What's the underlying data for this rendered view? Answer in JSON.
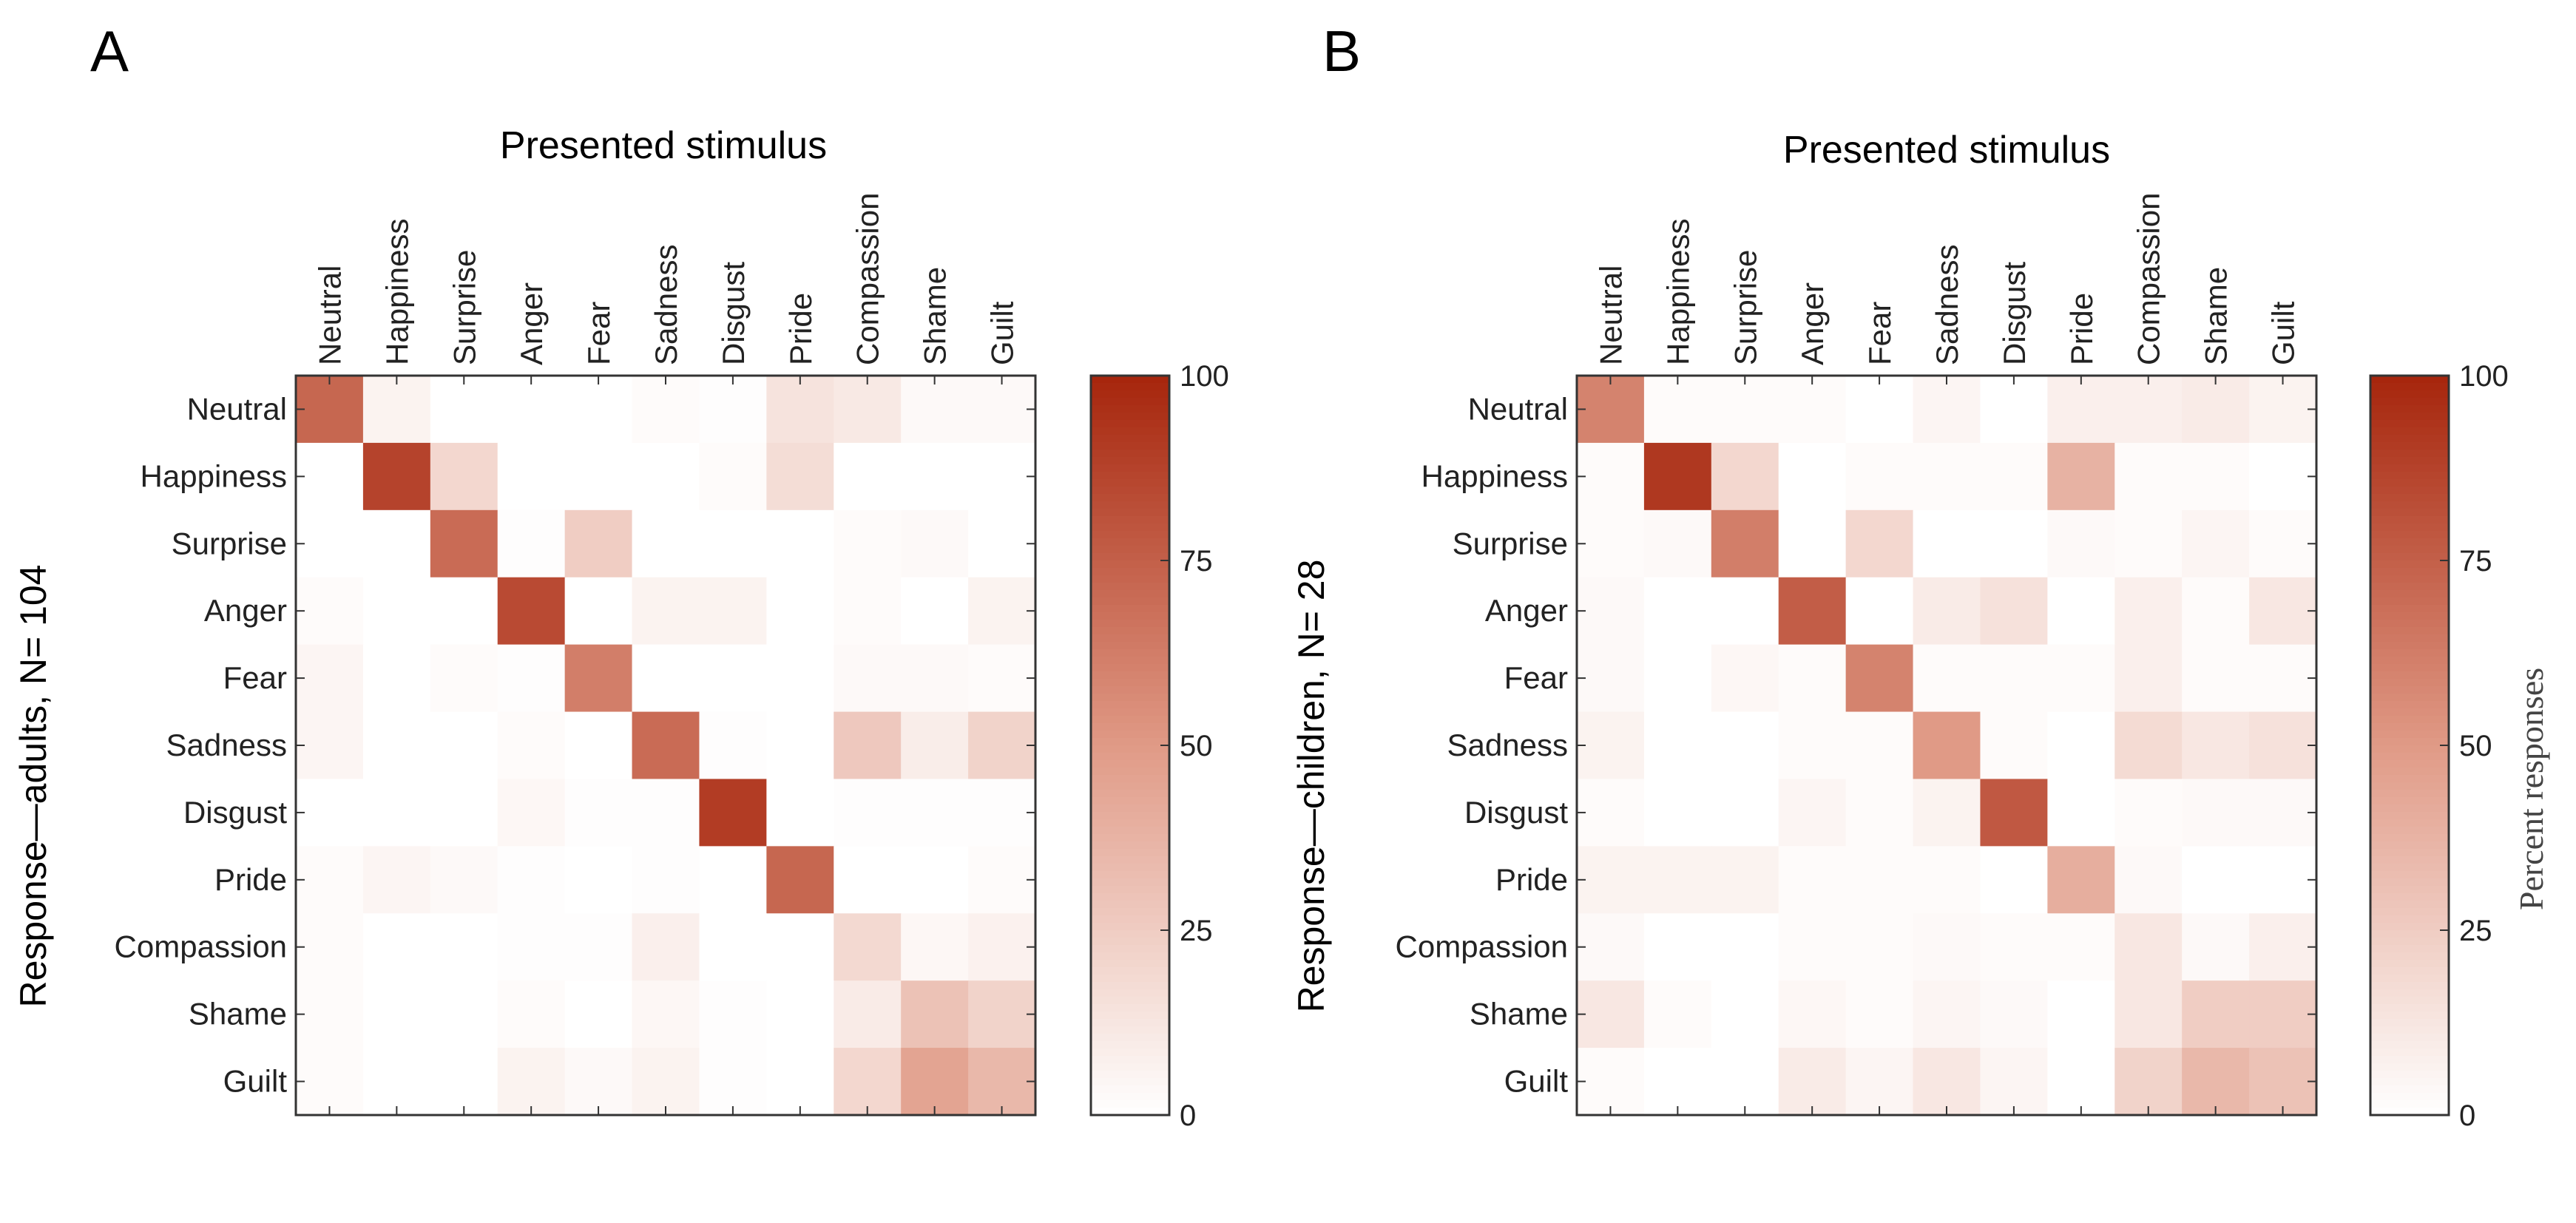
{
  "figure": {
    "colormap": {
      "low": "#ffffff",
      "mid": "#e09a86",
      "high": "#a6250c"
    }
  },
  "chart_data": [
    {
      "type": "heatmap",
      "panel_label": "A",
      "title": "Presented stimulus",
      "ylabel": "Response—adults, N= 104",
      "x_categories": [
        "Neutral",
        "Happiness",
        "Surprise",
        "Anger",
        "Fear",
        "Sadness",
        "Disgust",
        "Pride",
        "Compassion",
        "Shame",
        "Guilt"
      ],
      "y_categories": [
        "Neutral",
        "Happiness",
        "Surprise",
        "Anger",
        "Fear",
        "Sadness",
        "Disgust",
        "Pride",
        "Compassion",
        "Shame",
        "Guilt"
      ],
      "zlim": [
        0,
        100
      ],
      "colorbar": {
        "ticks": [
          0,
          25,
          50,
          75,
          100
        ],
        "label": ""
      },
      "values": [
        [
          72,
          6,
          0,
          0,
          0,
          2,
          1,
          14,
          11,
          3,
          3
        ],
        [
          0,
          87,
          20,
          0,
          0,
          0,
          2,
          17,
          0,
          0,
          0
        ],
        [
          0,
          0,
          70,
          1,
          25,
          0,
          0,
          0,
          2,
          3,
          0
        ],
        [
          2,
          0,
          0,
          84,
          0,
          6,
          6,
          0,
          2,
          0,
          6
        ],
        [
          5,
          0,
          2,
          1,
          62,
          0,
          0,
          0,
          3,
          3,
          2
        ],
        [
          5,
          0,
          0,
          2,
          0,
          70,
          1,
          0,
          27,
          9,
          22
        ],
        [
          0,
          0,
          0,
          4,
          1,
          1,
          90,
          0,
          1,
          1,
          1
        ],
        [
          2,
          5,
          3,
          1,
          0,
          1,
          0,
          72,
          0,
          0,
          2
        ],
        [
          2,
          0,
          0,
          1,
          1,
          8,
          0,
          0,
          19,
          4,
          7
        ],
        [
          2,
          0,
          0,
          2,
          0,
          4,
          1,
          0,
          10,
          30,
          22
        ],
        [
          2,
          0,
          0,
          6,
          3,
          6,
          1,
          0,
          20,
          45,
          35
        ]
      ]
    },
    {
      "type": "heatmap",
      "panel_label": "B",
      "title": "Presented stimulus",
      "ylabel": "Response—children, N= 28",
      "x_categories": [
        "Neutral",
        "Happiness",
        "Surprise",
        "Anger",
        "Fear",
        "Sadness",
        "Disgust",
        "Pride",
        "Compassion",
        "Shame",
        "Guilt"
      ],
      "y_categories": [
        "Neutral",
        "Happiness",
        "Surprise",
        "Anger",
        "Fear",
        "Sadness",
        "Disgust",
        "Pride",
        "Compassion",
        "Shame",
        "Guilt"
      ],
      "zlim": [
        0,
        100
      ],
      "colorbar": {
        "ticks": [
          0,
          25,
          50,
          75,
          100
        ],
        "label": "Percent responses"
      },
      "values": [
        [
          60,
          2,
          2,
          2,
          0,
          5,
          0,
          8,
          8,
          10,
          6
        ],
        [
          2,
          92,
          20,
          0,
          2,
          2,
          2,
          38,
          2,
          2,
          0
        ],
        [
          2,
          3,
          62,
          0,
          20,
          0,
          0,
          3,
          2,
          5,
          2
        ],
        [
          3,
          0,
          0,
          76,
          0,
          10,
          15,
          0,
          8,
          2,
          12
        ],
        [
          3,
          0,
          4,
          2,
          60,
          2,
          2,
          2,
          8,
          2,
          2
        ],
        [
          6,
          0,
          0,
          2,
          2,
          50,
          2,
          0,
          18,
          12,
          15
        ],
        [
          2,
          0,
          0,
          5,
          2,
          6,
          78,
          0,
          2,
          3,
          3
        ],
        [
          6,
          6,
          6,
          2,
          2,
          2,
          0,
          40,
          3,
          0,
          0
        ],
        [
          3,
          0,
          0,
          2,
          2,
          3,
          2,
          2,
          12,
          3,
          8
        ],
        [
          12,
          2,
          0,
          4,
          2,
          5,
          3,
          0,
          12,
          25,
          25
        ],
        [
          2,
          0,
          0,
          10,
          5,
          12,
          5,
          0,
          22,
          35,
          30
        ]
      ]
    }
  ]
}
